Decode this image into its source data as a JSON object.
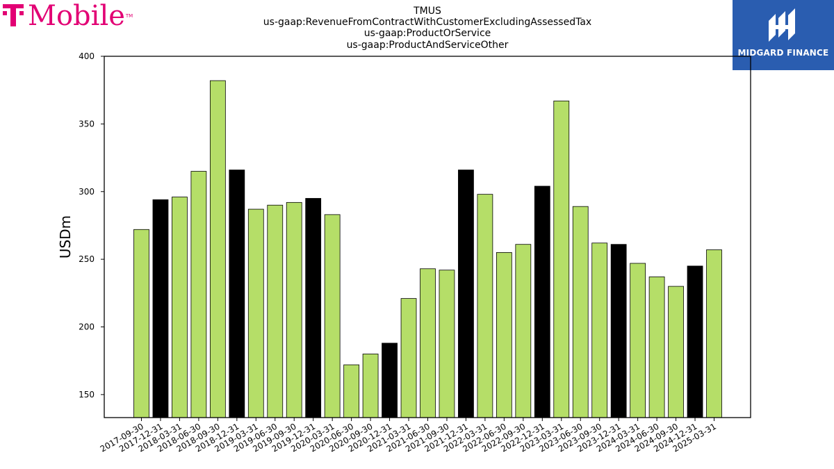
{
  "branding": {
    "company_logo_text": "T Mobile",
    "watermark_text": "MIDGARD FINANCE"
  },
  "colors": {
    "bar_primary": "#b5de68",
    "bar_year_end": "#000000",
    "logo_magenta": "#e20074",
    "watermark_blue": "#2a5db0"
  },
  "chart_data": {
    "type": "bar",
    "title_lines": [
      "TMUS",
      "us-gaap:RevenueFromContractWithCustomerExcludingAssessedTax",
      "us-gaap:ProductOrService",
      "us-gaap:ProductAndServiceOther"
    ],
    "xlabel": "",
    "ylabel": "USDm",
    "ylim": [
      133,
      400
    ],
    "yticks": [
      150,
      200,
      250,
      300,
      350,
      400
    ],
    "grid": false,
    "legend": "none",
    "categories": [
      "2017-09-30",
      "2017-12-31",
      "2018-03-31",
      "2018-06-30",
      "2018-09-30",
      "2018-12-31",
      "2019-03-31",
      "2019-06-30",
      "2019-09-30",
      "2019-12-31",
      "2020-03-31",
      "2020-06-30",
      "2020-09-30",
      "2020-12-31",
      "2021-03-31",
      "2021-06-30",
      "2021-09-30",
      "2021-12-31",
      "2022-03-31",
      "2022-06-30",
      "2022-09-30",
      "2022-12-31",
      "2023-03-31",
      "2023-06-30",
      "2023-09-30",
      "2023-12-31",
      "2024-03-31",
      "2024-06-30",
      "2024-09-30",
      "2024-12-31",
      "2025-03-31"
    ],
    "values": [
      272,
      294,
      296,
      315,
      382,
      316,
      287,
      290,
      292,
      295,
      283,
      172,
      180,
      188,
      221,
      243,
      242,
      316,
      298,
      255,
      261,
      304,
      367,
      289,
      262,
      261,
      247,
      237,
      230,
      245,
      257
    ],
    "highlight": [
      false,
      true,
      false,
      false,
      false,
      true,
      false,
      false,
      false,
      true,
      false,
      false,
      false,
      true,
      false,
      false,
      false,
      true,
      false,
      false,
      false,
      true,
      false,
      false,
      false,
      true,
      false,
      false,
      false,
      true,
      false
    ]
  }
}
